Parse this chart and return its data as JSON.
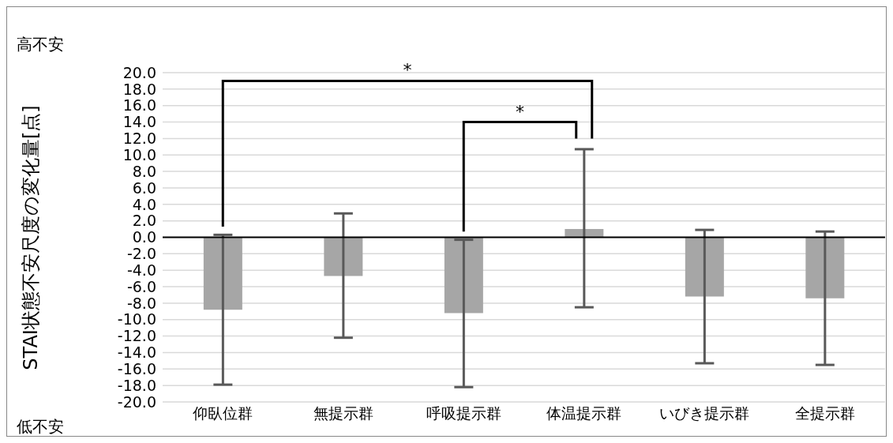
{
  "chart_data": {
    "type": "bar",
    "ylabel": "STAI状態不安尺度の変化量[点]",
    "categories": [
      "仰臥位群",
      "無提示群",
      "呼吸提示群",
      "体温提示群",
      "いびき提示群",
      "全提示群"
    ],
    "values": [
      -8.8,
      -4.7,
      -9.2,
      1.0,
      -7.2,
      -7.4
    ],
    "errors": [
      [
        -17.9,
        0.3
      ],
      [
        -12.2,
        2.9
      ],
      [
        -18.2,
        -0.3
      ],
      [
        -8.5,
        10.7
      ],
      [
        -15.3,
        0.9
      ],
      [
        -15.5,
        0.7
      ]
    ],
    "color": "#a6a6a6",
    "ylim": [
      -20,
      20
    ],
    "yticks": [
      {
        "value": -20,
        "label": "-20.0"
      },
      {
        "value": -18,
        "label": "-18.0"
      },
      {
        "value": -16,
        "label": "-16.0"
      },
      {
        "value": -14,
        "label": "-14.0"
      },
      {
        "value": -12,
        "label": "-12.0"
      },
      {
        "value": -10,
        "label": "-10.0"
      },
      {
        "value": -8,
        "label": "-8.0"
      },
      {
        "value": -6,
        "label": "-6.0"
      },
      {
        "value": -4,
        "label": "-4.0"
      },
      {
        "value": -2,
        "label": "-2.0"
      },
      {
        "value": 0,
        "label": "0.0"
      },
      {
        "value": 2,
        "label": "2.0"
      },
      {
        "value": 4,
        "label": "4.0"
      },
      {
        "value": 6,
        "label": "6.0"
      },
      {
        "value": 8,
        "label": "8.0"
      },
      {
        "value": 10,
        "label": "10.0"
      },
      {
        "value": 12,
        "label": "12.0"
      },
      {
        "value": 14,
        "label": "14.0"
      },
      {
        "value": 16,
        "label": "16.0"
      },
      {
        "value": 18,
        "label": "18.0"
      },
      {
        "value": 20,
        "label": "20.0"
      }
    ],
    "grid": "y",
    "ref_lines": [
      {
        "axis": "y",
        "value": 0,
        "color": "#000000"
      }
    ],
    "annotations": [
      "高不安",
      "低不安",
      "*",
      "*"
    ]
  }
}
